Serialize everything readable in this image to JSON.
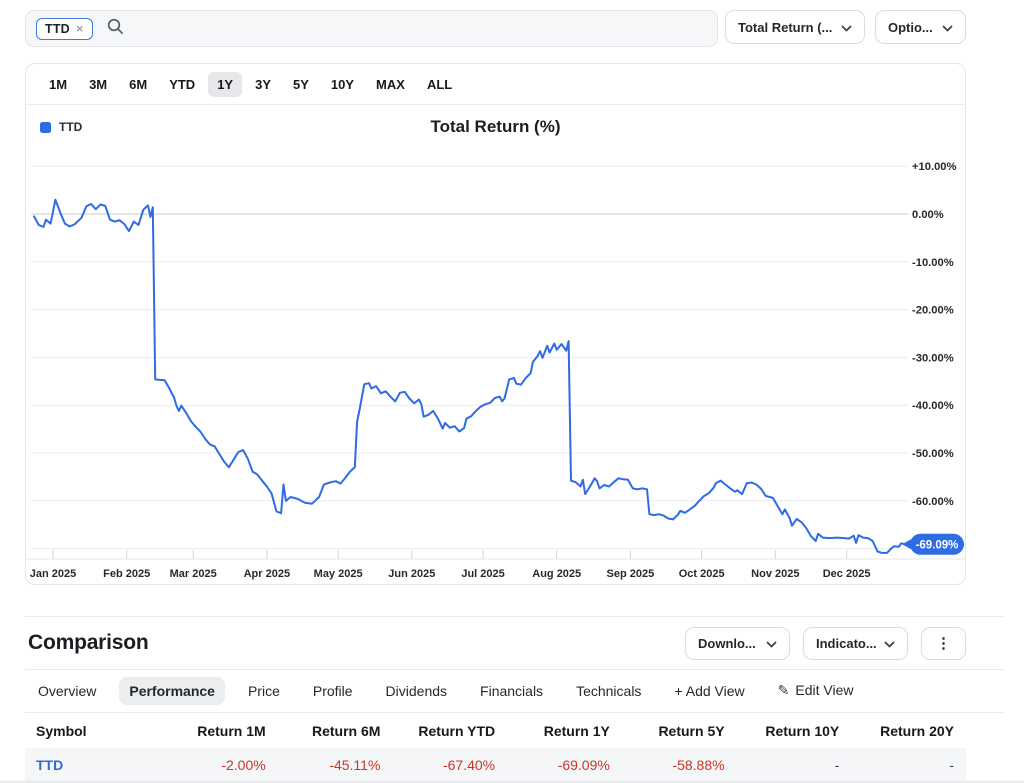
{
  "colors": {
    "accent": "#2e6be4",
    "negative": "#d03428",
    "link": "#2f6bc9",
    "grid": "#ececee",
    "zero_line": "#c6c9cd",
    "axis_text": "#26292e"
  },
  "toolbar": {
    "ticker_chip": {
      "label": "TTD",
      "close_icon": "×"
    },
    "metric_dropdown": "Total Return (...",
    "options_dropdown": "Optio..."
  },
  "range_tabs": {
    "items": [
      "1M",
      "3M",
      "6M",
      "YTD",
      "1Y",
      "3Y",
      "5Y",
      "10Y",
      "MAX",
      "ALL"
    ],
    "selected": "1Y"
  },
  "chart": {
    "legend": "TTD",
    "title": "Total Return (%)",
    "last_value_badge": "-69.09%"
  },
  "chart_data": {
    "type": "line",
    "title": "Total Return (%)",
    "legend_position": "top-left",
    "grid": true,
    "ylim": [
      -72,
      13
    ],
    "x_range": [
      "2024-12-24",
      "2025-12-26"
    ],
    "x_tick_labels": [
      "Jan 2025",
      "Feb 2025",
      "Mar 2025",
      "Apr 2025",
      "May 2025",
      "Jun 2025",
      "Jul 2025",
      "Aug 2025",
      "Sep 2025",
      "Oct 2025",
      "Nov 2025",
      "Dec 2025"
    ],
    "x_tick_dates": [
      "2025-01-01",
      "2025-02-01",
      "2025-03-01",
      "2025-04-01",
      "2025-05-01",
      "2025-06-01",
      "2025-07-01",
      "2025-08-01",
      "2025-09-01",
      "2025-10-01",
      "2025-11-01",
      "2025-12-01"
    ],
    "y_ticks": [
      {
        "label": "+10.00%",
        "value": 10
      },
      {
        "label": "0.00%",
        "value": 0
      },
      {
        "label": "-10.00%",
        "value": -10
      },
      {
        "label": "-20.00%",
        "value": -20
      },
      {
        "label": "-30.00%",
        "value": -30
      },
      {
        "label": "-40.00%",
        "value": -40
      },
      {
        "label": "-50.00%",
        "value": -50
      },
      {
        "label": "-60.00%",
        "value": -60
      }
    ],
    "extra_gridlines": [
      -70
    ],
    "last_value_label": "-69.09%",
    "series": [
      {
        "name": "TTD",
        "color": "#2e6be4",
        "points": [
          [
            "2024-12-24",
            -0.5
          ],
          [
            "2024-12-26",
            -2.3
          ],
          [
            "2024-12-28",
            -2.7
          ],
          [
            "2024-12-29",
            -1.2
          ],
          [
            "2024-12-31",
            -2.0
          ],
          [
            "2025-01-02",
            3.0
          ],
          [
            "2025-01-04",
            0.4
          ],
          [
            "2025-01-06",
            -2.0
          ],
          [
            "2025-01-08",
            -2.6
          ],
          [
            "2025-01-10",
            -2.2
          ],
          [
            "2025-01-13",
            -0.8
          ],
          [
            "2025-01-15",
            1.6
          ],
          [
            "2025-01-17",
            2.1
          ],
          [
            "2025-01-19",
            1.0
          ],
          [
            "2025-01-21",
            2.0
          ],
          [
            "2025-01-23",
            1.7
          ],
          [
            "2025-01-25",
            -1.2
          ],
          [
            "2025-01-27",
            -1.6
          ],
          [
            "2025-01-29",
            -1.3
          ],
          [
            "2025-01-31",
            -2.1
          ],
          [
            "2025-02-02",
            -3.6
          ],
          [
            "2025-02-04",
            -1.6
          ],
          [
            "2025-02-06",
            -2.3
          ],
          [
            "2025-02-08",
            0.9
          ],
          [
            "2025-02-10",
            1.8
          ],
          [
            "2025-02-11",
            -0.6
          ],
          [
            "2025-02-12",
            1.4
          ],
          [
            "2025-02-13",
            -34.6
          ],
          [
            "2025-02-15",
            -34.7
          ],
          [
            "2025-02-17",
            -34.8
          ],
          [
            "2025-02-19",
            -36.5
          ],
          [
            "2025-02-21",
            -38.5
          ],
          [
            "2025-02-22",
            -40.2
          ],
          [
            "2025-02-23",
            -41.2
          ],
          [
            "2025-02-24",
            -40.1
          ],
          [
            "2025-02-26",
            -41.6
          ],
          [
            "2025-02-28",
            -43.3
          ],
          [
            "2025-03-02",
            -44.5
          ],
          [
            "2025-03-04",
            -45.5
          ],
          [
            "2025-03-06",
            -47.0
          ],
          [
            "2025-03-08",
            -48.2
          ],
          [
            "2025-03-10",
            -48.6
          ],
          [
            "2025-03-12",
            -50.2
          ],
          [
            "2025-03-14",
            -51.8
          ],
          [
            "2025-03-16",
            -53.0
          ],
          [
            "2025-03-18",
            -51.4
          ],
          [
            "2025-03-20",
            -49.8
          ],
          [
            "2025-03-22",
            -49.4
          ],
          [
            "2025-03-24",
            -51.2
          ],
          [
            "2025-03-26",
            -53.9
          ],
          [
            "2025-03-28",
            -54.5
          ],
          [
            "2025-03-30",
            -55.8
          ],
          [
            "2025-04-01",
            -57.0
          ],
          [
            "2025-04-03",
            -58.5
          ],
          [
            "2025-04-05",
            -62.2
          ],
          [
            "2025-04-07",
            -62.6
          ],
          [
            "2025-04-08",
            -56.6
          ],
          [
            "2025-04-09",
            -60.0
          ],
          [
            "2025-04-11",
            -59.2
          ],
          [
            "2025-04-14",
            -59.6
          ],
          [
            "2025-04-17",
            -60.4
          ],
          [
            "2025-04-20",
            -60.6
          ],
          [
            "2025-04-23",
            -59.2
          ],
          [
            "2025-04-25",
            -56.6
          ],
          [
            "2025-04-28",
            -56.1
          ],
          [
            "2025-04-30",
            -55.9
          ],
          [
            "2025-05-02",
            -56.4
          ],
          [
            "2025-05-04",
            -55.2
          ],
          [
            "2025-05-06",
            -53.9
          ],
          [
            "2025-05-08",
            -53.0
          ],
          [
            "2025-05-09",
            -43.4
          ],
          [
            "2025-05-10",
            -41.0
          ],
          [
            "2025-05-12",
            -35.6
          ],
          [
            "2025-05-14",
            -35.4
          ],
          [
            "2025-05-15",
            -36.5
          ],
          [
            "2025-05-17",
            -36.0
          ],
          [
            "2025-05-19",
            -37.5
          ],
          [
            "2025-05-21",
            -37.1
          ],
          [
            "2025-05-23",
            -38.2
          ],
          [
            "2025-05-25",
            -39.2
          ],
          [
            "2025-05-27",
            -37.4
          ],
          [
            "2025-05-29",
            -37.2
          ],
          [
            "2025-05-31",
            -38.6
          ],
          [
            "2025-06-02",
            -39.6
          ],
          [
            "2025-06-04",
            -38.8
          ],
          [
            "2025-06-05",
            -39.8
          ],
          [
            "2025-06-06",
            -42.4
          ],
          [
            "2025-06-08",
            -42.0
          ],
          [
            "2025-06-10",
            -41.2
          ],
          [
            "2025-06-12",
            -42.8
          ],
          [
            "2025-06-14",
            -44.9
          ],
          [
            "2025-06-15",
            -43.7
          ],
          [
            "2025-06-17",
            -44.7
          ],
          [
            "2025-06-19",
            -44.4
          ],
          [
            "2025-06-21",
            -45.5
          ],
          [
            "2025-06-23",
            -44.8
          ],
          [
            "2025-06-24",
            -42.8
          ],
          [
            "2025-06-26",
            -42.3
          ],
          [
            "2025-06-28",
            -41.2
          ],
          [
            "2025-06-30",
            -40.3
          ],
          [
            "2025-07-02",
            -39.8
          ],
          [
            "2025-07-04",
            -39.5
          ],
          [
            "2025-07-06",
            -38.5
          ],
          [
            "2025-07-08",
            -38.2
          ],
          [
            "2025-07-09",
            -39.2
          ],
          [
            "2025-07-10",
            -38.6
          ],
          [
            "2025-07-12",
            -34.6
          ],
          [
            "2025-07-14",
            -34.3
          ],
          [
            "2025-07-15",
            -35.5
          ],
          [
            "2025-07-17",
            -35.7
          ],
          [
            "2025-07-19",
            -34.3
          ],
          [
            "2025-07-21",
            -33.3
          ],
          [
            "2025-07-22",
            -30.9
          ],
          [
            "2025-07-24",
            -29.7
          ],
          [
            "2025-07-25",
            -28.7
          ],
          [
            "2025-07-26",
            -30.1
          ],
          [
            "2025-07-28",
            -27.6
          ],
          [
            "2025-07-29",
            -29.0
          ],
          [
            "2025-07-31",
            -27.1
          ],
          [
            "2025-08-01",
            -28.4
          ],
          [
            "2025-08-03",
            -27.2
          ],
          [
            "2025-08-05",
            -28.6
          ],
          [
            "2025-08-06",
            -26.6
          ],
          [
            "2025-08-07",
            -55.8
          ],
          [
            "2025-08-09",
            -56.1
          ],
          [
            "2025-08-11",
            -57.0
          ],
          [
            "2025-08-12",
            -55.6
          ],
          [
            "2025-08-13",
            -58.6
          ],
          [
            "2025-08-15",
            -57.0
          ],
          [
            "2025-08-17",
            -55.3
          ],
          [
            "2025-08-18",
            -55.9
          ],
          [
            "2025-08-19",
            -57.4
          ],
          [
            "2025-08-21",
            -56.7
          ],
          [
            "2025-08-23",
            -57.0
          ],
          [
            "2025-08-25",
            -56.1
          ],
          [
            "2025-08-27",
            -55.3
          ],
          [
            "2025-08-29",
            -55.5
          ],
          [
            "2025-08-31",
            -55.6
          ],
          [
            "2025-09-02",
            -57.4
          ],
          [
            "2025-09-04",
            -57.6
          ],
          [
            "2025-09-06",
            -57.4
          ],
          [
            "2025-09-08",
            -57.6
          ],
          [
            "2025-09-09",
            -62.8
          ],
          [
            "2025-09-11",
            -63.0
          ],
          [
            "2025-09-13",
            -62.8
          ],
          [
            "2025-09-15",
            -63.1
          ],
          [
            "2025-09-17",
            -63.7
          ],
          [
            "2025-09-19",
            -63.9
          ],
          [
            "2025-09-21",
            -62.9
          ],
          [
            "2025-09-22",
            -62.1
          ],
          [
            "2025-09-24",
            -62.5
          ],
          [
            "2025-09-26",
            -61.8
          ],
          [
            "2025-09-28",
            -61.1
          ],
          [
            "2025-09-30",
            -60.0
          ],
          [
            "2025-10-02",
            -59.0
          ],
          [
            "2025-10-04",
            -58.4
          ],
          [
            "2025-10-06",
            -57.3
          ],
          [
            "2025-10-07",
            -56.3
          ],
          [
            "2025-10-09",
            -55.8
          ],
          [
            "2025-10-11",
            -56.6
          ],
          [
            "2025-10-13",
            -57.4
          ],
          [
            "2025-10-15",
            -58.1
          ],
          [
            "2025-10-16",
            -57.8
          ],
          [
            "2025-10-18",
            -58.6
          ],
          [
            "2025-10-20",
            -56.3
          ],
          [
            "2025-10-22",
            -56.2
          ],
          [
            "2025-10-24",
            -56.6
          ],
          [
            "2025-10-26",
            -57.5
          ],
          [
            "2025-10-28",
            -59.0
          ],
          [
            "2025-10-31",
            -59.4
          ],
          [
            "2025-11-02",
            -61.1
          ],
          [
            "2025-11-04",
            -62.8
          ],
          [
            "2025-11-05",
            -61.8
          ],
          [
            "2025-11-07",
            -63.6
          ],
          [
            "2025-11-08",
            -65.2
          ],
          [
            "2025-11-10",
            -63.8
          ],
          [
            "2025-11-12",
            -64.5
          ],
          [
            "2025-11-14",
            -65.7
          ],
          [
            "2025-11-16",
            -67.4
          ],
          [
            "2025-11-18",
            -68.4
          ],
          [
            "2025-11-19",
            -66.9
          ],
          [
            "2025-11-21",
            -67.7
          ],
          [
            "2025-11-24",
            -67.8
          ],
          [
            "2025-11-27",
            -67.7
          ],
          [
            "2025-11-30",
            -67.8
          ],
          [
            "2025-12-02",
            -67.9
          ],
          [
            "2025-12-04",
            -67.3
          ],
          [
            "2025-12-05",
            -68.8
          ],
          [
            "2025-12-06",
            -67.2
          ],
          [
            "2025-12-08",
            -67.7
          ],
          [
            "2025-12-10",
            -67.8
          ],
          [
            "2025-12-12",
            -68.4
          ],
          [
            "2025-12-14",
            -70.6
          ],
          [
            "2025-12-16",
            -70.9
          ],
          [
            "2025-12-18",
            -70.9
          ],
          [
            "2025-12-20",
            -69.9
          ],
          [
            "2025-12-21",
            -69.5
          ],
          [
            "2025-12-23",
            -69.6
          ],
          [
            "2025-12-24",
            -68.9
          ],
          [
            "2025-12-26",
            -69.09
          ]
        ]
      }
    ]
  },
  "comparison": {
    "heading": "Comparison",
    "download_dropdown": "Downlo...",
    "indicators_dropdown": "Indicato...",
    "kebab_icon": "⋮",
    "tabs": [
      "Overview",
      "Performance",
      "Price",
      "Profile",
      "Dividends",
      "Financials",
      "Technicals"
    ],
    "selected_tab": "Performance",
    "add_view_label": "+ Add View",
    "edit_view_icon": "✎",
    "edit_view_label": "Edit View",
    "table": {
      "columns": [
        "Symbol",
        "Return 1M",
        "Return 6M",
        "Return YTD",
        "Return 1Y",
        "Return 5Y",
        "Return 10Y",
        "Return 20Y"
      ],
      "rows": [
        {
          "symbol": "TTD",
          "returns": [
            "-2.00%",
            "-45.11%",
            "-67.40%",
            "-69.09%",
            "-58.88%",
            "-",
            "-"
          ]
        }
      ]
    }
  }
}
